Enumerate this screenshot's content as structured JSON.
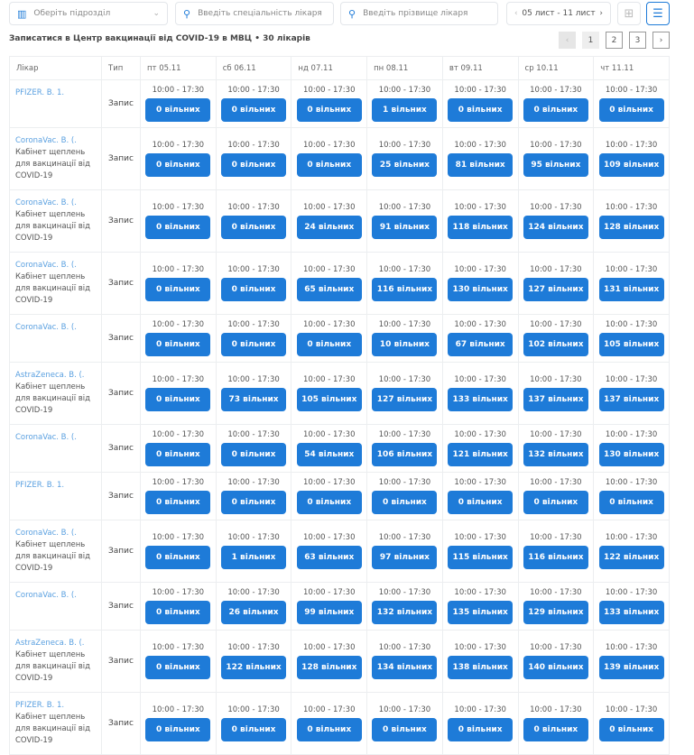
{
  "filters": {
    "department_placeholder": "Оберіть підрозділ",
    "specialty_placeholder": "Введіть спеціальність лікаря",
    "surname_placeholder": "Введіть прізвище лікаря",
    "date_range": "05 лист - 11 лист"
  },
  "title": "Записатися в Центр вакцинації від COVID-19 в МВЦ • 30 лікарів",
  "pagination": {
    "pages": [
      "1",
      "2",
      "3"
    ],
    "current": "1",
    "prev": "‹",
    "next": "›"
  },
  "table": {
    "headers": [
      "Лікар",
      "Тип",
      "пт 05.11",
      "сб 06.11",
      "нд 07.11",
      "пн 08.11",
      "вт 09.11",
      "ср 10.11",
      "чт 11.11"
    ],
    "slot_time": "10:00 - 17:30",
    "slot_suffix": "вільних",
    "rows": [
      {
        "doctor": "PFIZER. В. 1.",
        "desc": "",
        "type": "Запис",
        "slots": [
          "0 вільних",
          "0 вільних",
          "0 вільних",
          "1 вільних",
          "0 вільних",
          "0 вільних",
          "0 вільних"
        ]
      },
      {
        "doctor": "CoronaVac. В. (.",
        "desc": "Кабінет щеплень для вакцинації від COVID-19",
        "type": "Запис",
        "slots": [
          "0 вільних",
          "0 вільних",
          "0 вільних",
          "25 вільних",
          "81 вільних",
          "95 вільних",
          "109 вільних"
        ]
      },
      {
        "doctor": "CoronaVac. В. (.",
        "desc": "Кабінет щеплень для вакцинації від COVID-19",
        "type": "Запис",
        "slots": [
          "0 вільних",
          "0 вільних",
          "24 вільних",
          "91 вільних",
          "118 вільних",
          "124 вільних",
          "128 вільних"
        ]
      },
      {
        "doctor": "CoronaVac. В. (.",
        "desc": "Кабінет щеплень для вакцинації від COVID-19",
        "type": "Запис",
        "slots": [
          "0 вільних",
          "0 вільних",
          "65 вільних",
          "116 вільних",
          "130 вільних",
          "127 вільних",
          "131 вільних"
        ]
      },
      {
        "doctor": "CoronaVac. В. (.",
        "desc": "",
        "type": "Запис",
        "slots": [
          "0 вільних",
          "0 вільних",
          "0 вільних",
          "10 вільних",
          "67 вільних",
          "102 вільних",
          "105 вільних"
        ]
      },
      {
        "doctor": "AstraZeneca. В. (.",
        "desc": "Кабінет щеплень для вакцинації від COVID-19",
        "type": "Запис",
        "slots": [
          "0 вільних",
          "73 вільних",
          "105 вільних",
          "127 вільних",
          "133 вільних",
          "137 вільних",
          "137 вільних"
        ]
      },
      {
        "doctor": "CoronaVac. В. (.",
        "desc": "",
        "type": "Запис",
        "slots": [
          "0 вільних",
          "0 вільних",
          "54 вільних",
          "106 вільних",
          "121 вільних",
          "132 вільних",
          "130 вільних"
        ]
      },
      {
        "doctor": "PFIZER. В. 1.",
        "desc": "",
        "type": "Запис",
        "slots": [
          "0 вільних",
          "0 вільних",
          "0 вільних",
          "0 вільних",
          "0 вільних",
          "0 вільних",
          "0 вільних"
        ]
      },
      {
        "doctor": "CoronaVac. В. (.",
        "desc": "Кабінет щеплень для вакцинації від COVID-19",
        "type": "Запис",
        "slots": [
          "0 вільних",
          "1 вільних",
          "63 вільних",
          "97 вільних",
          "115 вільних",
          "116 вільних",
          "122 вільних"
        ]
      },
      {
        "doctor": "CoronaVac. В. (.",
        "desc": "",
        "type": "Запис",
        "slots": [
          "0 вільних",
          "26 вільних",
          "99 вільних",
          "132 вільних",
          "135 вільних",
          "129 вільних",
          "133 вільних"
        ]
      },
      {
        "doctor": "AstraZeneca. В. (.",
        "desc": "Кабінет щеплень для вакцинації від COVID-19",
        "type": "Запис",
        "slots": [
          "0 вільних",
          "122 вільних",
          "128 вільних",
          "134 вільних",
          "138 вільних",
          "140 вільних",
          "139 вільних"
        ]
      },
      {
        "doctor": "PFIZER. В. 1.",
        "desc": "Кабінет щеплень для вакцинації від COVID-19",
        "type": "Запис",
        "slots": [
          "0 вільних",
          "0 вільних",
          "0 вільних",
          "0 вільних",
          "0 вільних",
          "0 вільних",
          "0 вільних"
        ]
      }
    ]
  },
  "colors": {
    "accent": "#1e7bd8",
    "doctor_link": "#5aa0e0"
  }
}
